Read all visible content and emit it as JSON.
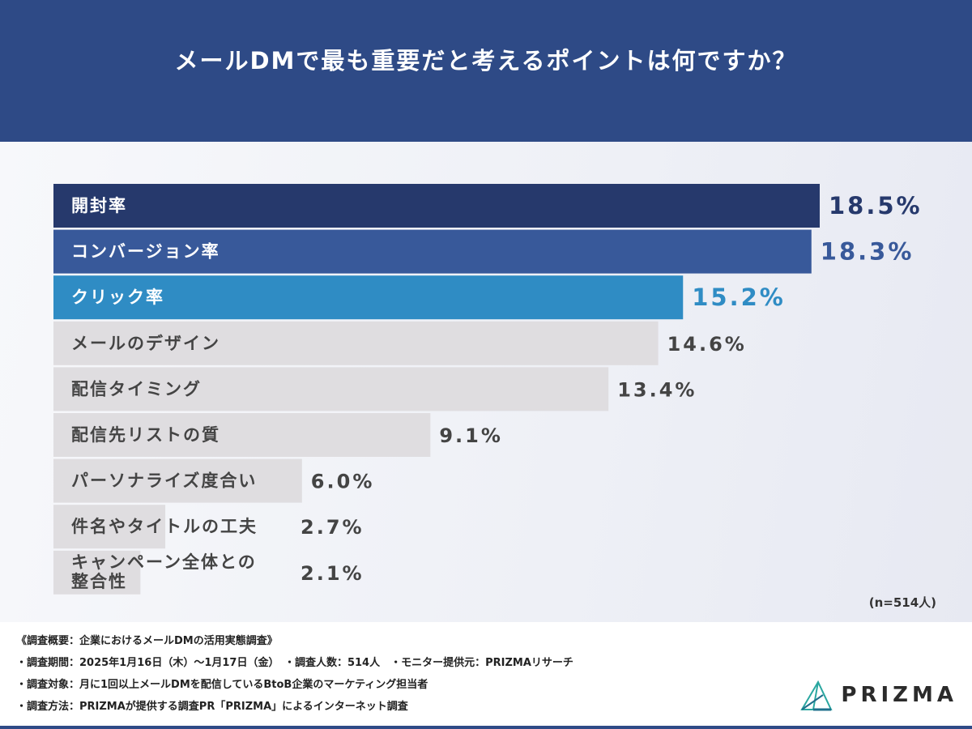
{
  "header": {
    "title": "メールDMで最も重要だと考えるポイントは何ですか？"
  },
  "chart_data": {
    "type": "bar",
    "orientation": "horizontal",
    "title": "メールDMで最も重要だと考えるポイントは何ですか？",
    "categories": [
      "開封率",
      "コンバージョン率",
      "クリック率",
      "メールのデザイン",
      "配信タイミング",
      "配信先リストの質",
      "パーソナライズ度合い",
      "件名やタイトルの工夫",
      "キャンペーン全体との整合性"
    ],
    "category_lines": [
      [
        "開封率"
      ],
      [
        "コンバージョン率"
      ],
      [
        "クリック率"
      ],
      [
        "メールのデザイン"
      ],
      [
        "配信タイミング"
      ],
      [
        "配信先リストの質"
      ],
      [
        "パーソナライズ度合い"
      ],
      [
        "件名やタイトルの工夫"
      ],
      [
        "キャンペーン全体との",
        "整合性"
      ]
    ],
    "values": [
      18.5,
      18.3,
      15.2,
      14.6,
      13.4,
      9.1,
      6.0,
      2.7,
      2.1
    ],
    "value_labels": [
      "18.5%",
      "18.3%",
      "15.2%",
      "14.6%",
      "13.4%",
      "9.1%",
      "6.0%",
      "2.7%",
      "2.1%"
    ],
    "unit": "%",
    "xlim": [
      0,
      18.5
    ],
    "grid": false,
    "legend": "none",
    "colors": {
      "bars": [
        "#26396c",
        "#38599a",
        "#2f8cc4",
        "#dfdde0",
        "#dfdde0",
        "#dfdde0",
        "#dfdde0",
        "#dfdde0",
        "#dfdde0"
      ],
      "label_text": [
        "#ffffff",
        "#ffffff",
        "#ffffff",
        "#444444",
        "#444444",
        "#444444",
        "#444444",
        "#444444",
        "#444444"
      ],
      "value_text": [
        "#26396c",
        "#38599a",
        "#2f8cc4",
        "#444444",
        "#444444",
        "#444444",
        "#444444",
        "#444444",
        "#444444"
      ]
    },
    "note": "(n=514人)"
  },
  "footer": {
    "lines": [
      "《調査概要：企業におけるメールDMの活用実態調査》",
      "・調査期間：2025年1月16日（木）～1月17日（金）　・調査人数：514人　・モニター提供元：PRIZMAリサーチ",
      "・調査対象：月に1回以上メールDMを配信しているBtoB企業のマーケティング担当者",
      "・調査方法：PRIZMAが提供する調査PR「PRIZMA」によるインターネット調査"
    ],
    "logo_text": "PRIZMA",
    "logo_icon": "prism-icon"
  }
}
